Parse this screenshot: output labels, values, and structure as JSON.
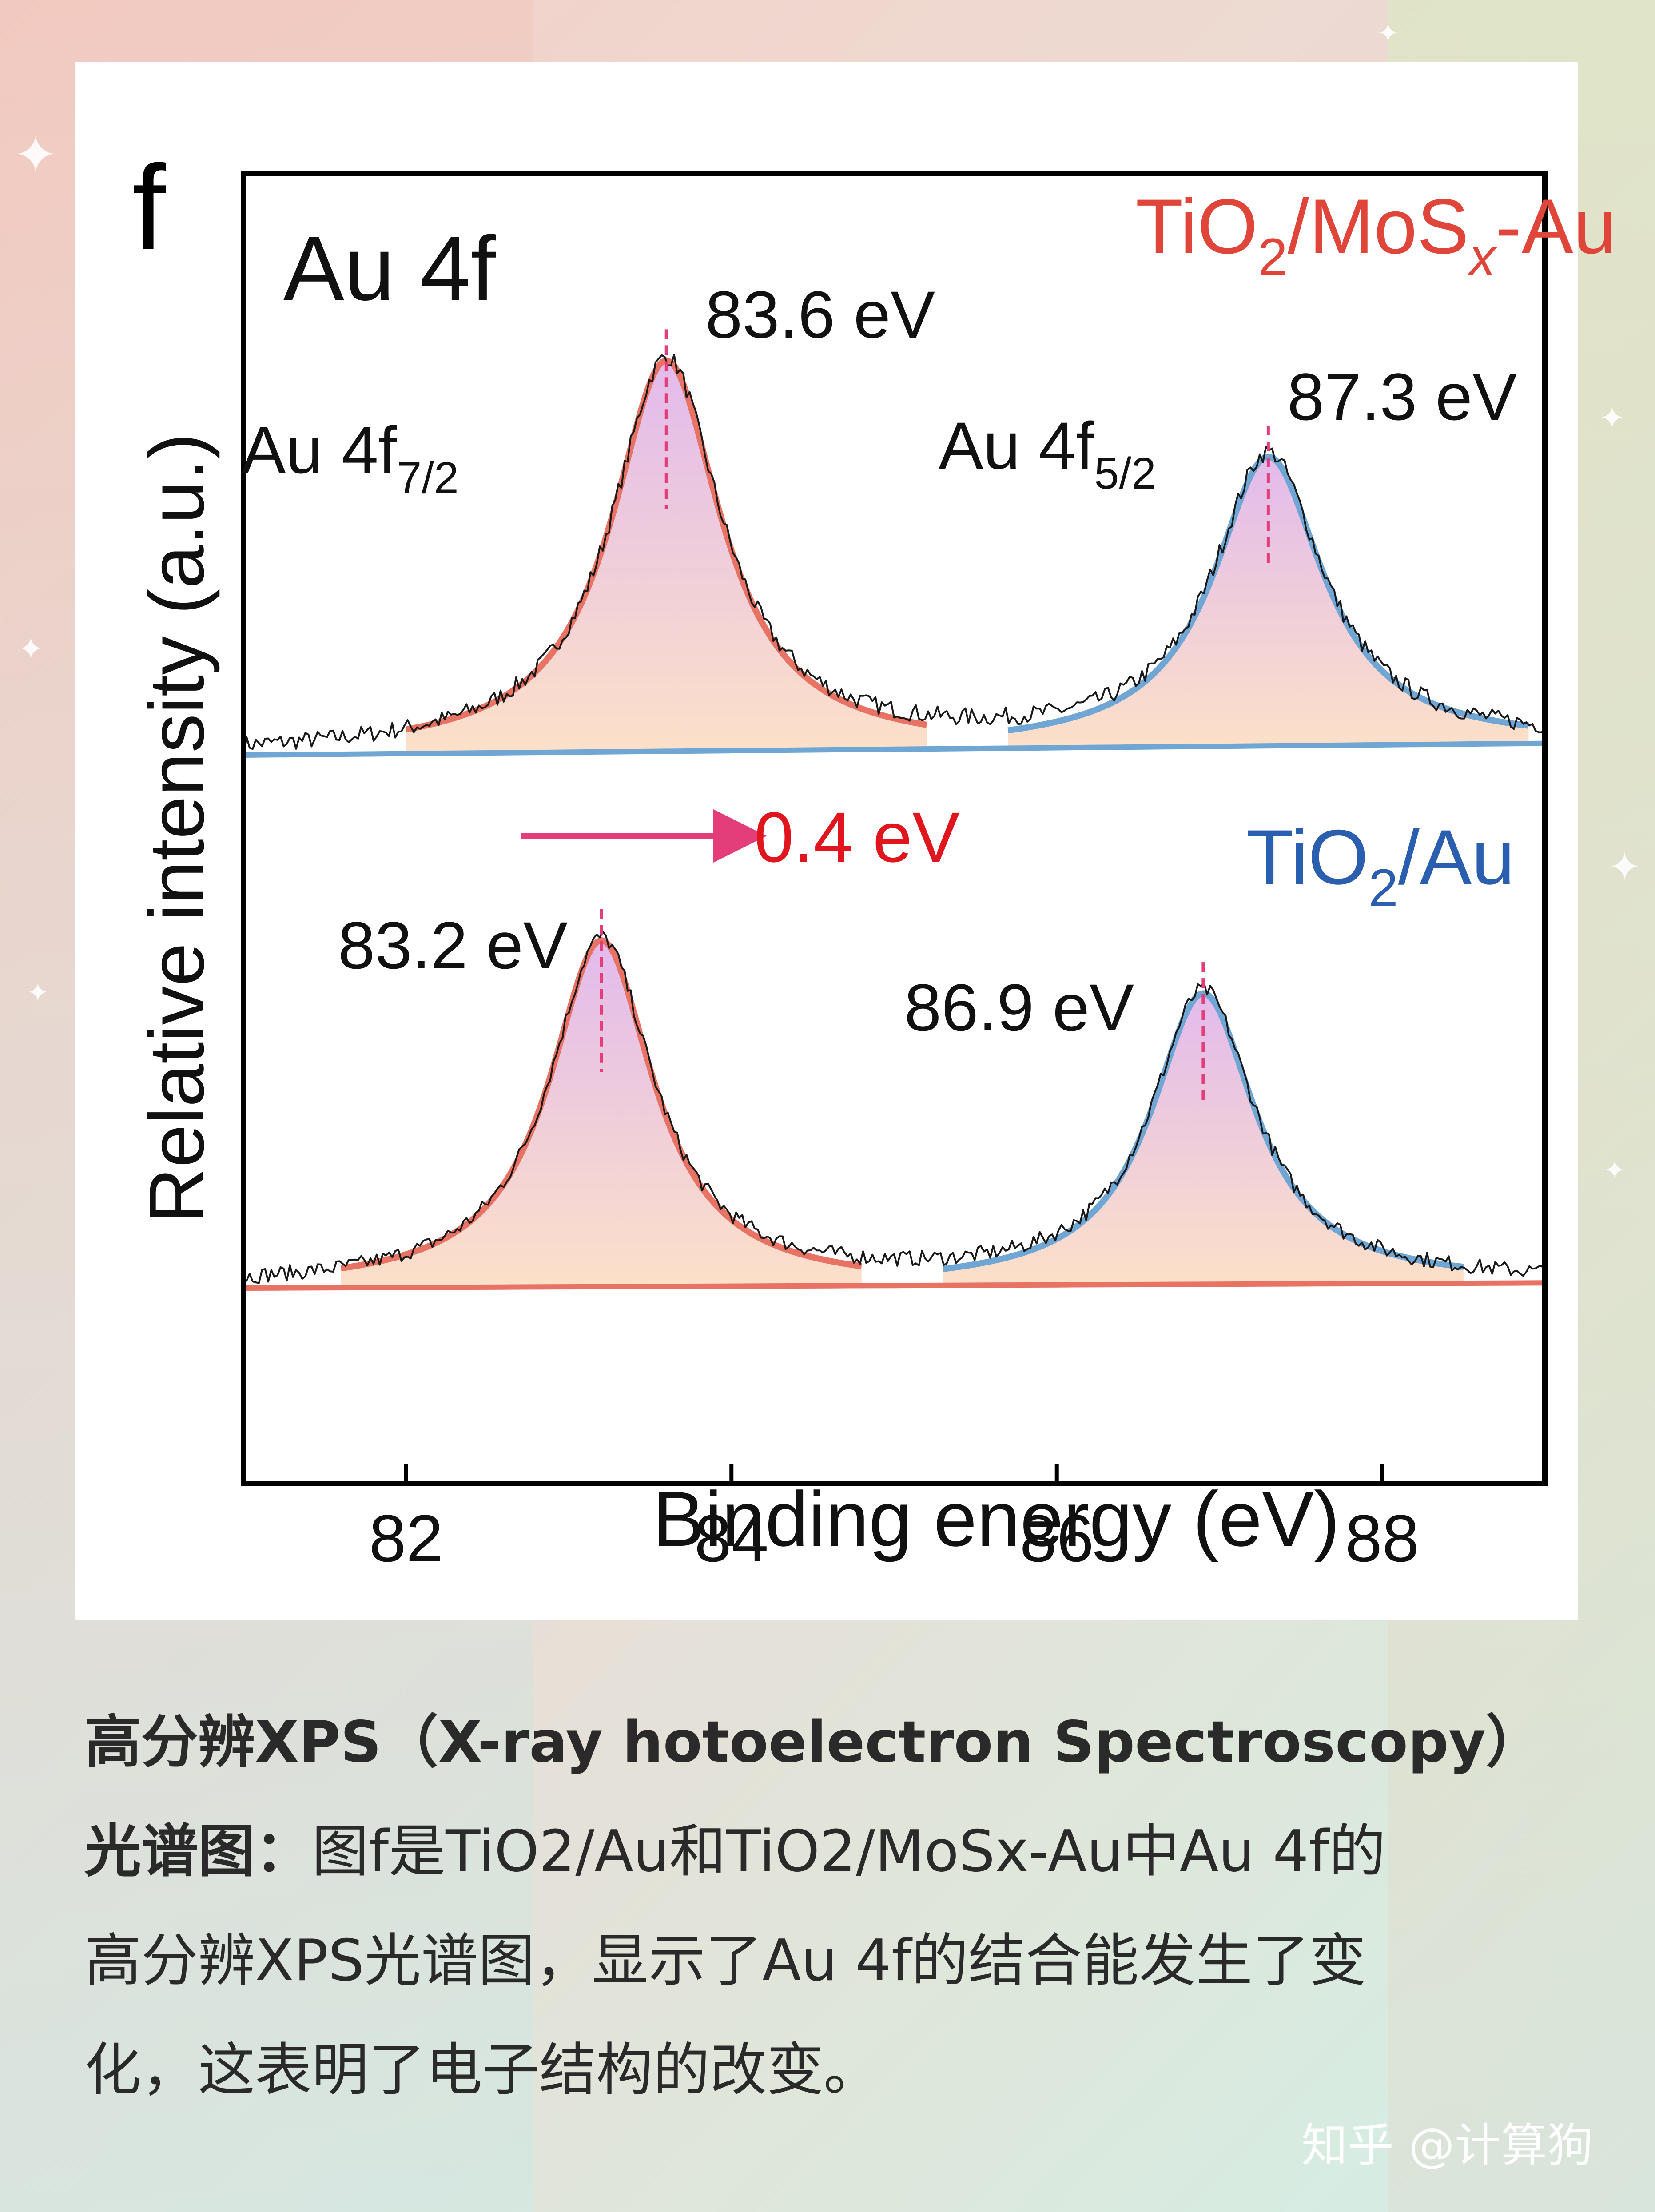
{
  "chart_data": {
    "type": "line",
    "panel_label": "f",
    "title": "Au 4f",
    "xlabel": "Binding energy (eV)",
    "ylabel": "Relative intensity (a.u.)",
    "xlim": [
      81,
      89
    ],
    "xticks": [
      82,
      84,
      86,
      88
    ],
    "yticks": [],
    "grid": false,
    "shift_annotation": "0.4 eV",
    "panels": [
      {
        "name": "TiO2/MoSx-Au",
        "label_main": "TiO",
        "label_sub1": "2",
        "label_mid": "/MoS",
        "label_sub2": "x",
        "label_tail": "-Au",
        "label_color": "#e0453a",
        "baseline": [
          0.0,
          0.03
        ],
        "peaks": [
          {
            "name": "Au 4f7/2",
            "label_main": "Au 4f",
            "label_sub": "7/2",
            "center": 83.6,
            "height": 1.0,
            "fwhm": 0.82,
            "color": "#e87364",
            "value_label": "83.6 eV"
          },
          {
            "name": "Au 4f5/2",
            "label_main": "Au 4f",
            "label_sub": "5/2",
            "center": 87.3,
            "height": 0.74,
            "fwhm": 0.82,
            "color": "#6fa6d4",
            "value_label": "87.3 eV"
          }
        ]
      },
      {
        "name": "TiO2/Au",
        "label_main": "TiO",
        "label_sub1": "2",
        "label_mid": "/Au",
        "label_color": "#2a5fb0",
        "baseline": [
          0.0,
          0.015
        ],
        "peaks": [
          {
            "name": "Au 4f7/2",
            "center": 83.2,
            "height": 1.0,
            "fwhm": 0.78,
            "color": "#e87364",
            "value_label": "83.2 eV"
          },
          {
            "name": "Au 4f5/2",
            "center": 86.9,
            "height": 0.84,
            "fwhm": 0.78,
            "color": "#6fa6d4",
            "value_label": "86.9 eV"
          }
        ]
      }
    ]
  },
  "caption": {
    "bold_line1": "高分辨XPS（X-ray hotoelectron Spectroscopy）",
    "bold_line2_prefix": "光谱图：",
    "line2_rest": "图f是TiO2/Au和TiO2/MoSx-Au中Au 4f的",
    "line3": "高分辨XPS光谱图，显示了Au 4f的结合能发生了变",
    "line4": "化，这表明了电子结构的改变。"
  },
  "watermark": "知乎 @计算狗"
}
